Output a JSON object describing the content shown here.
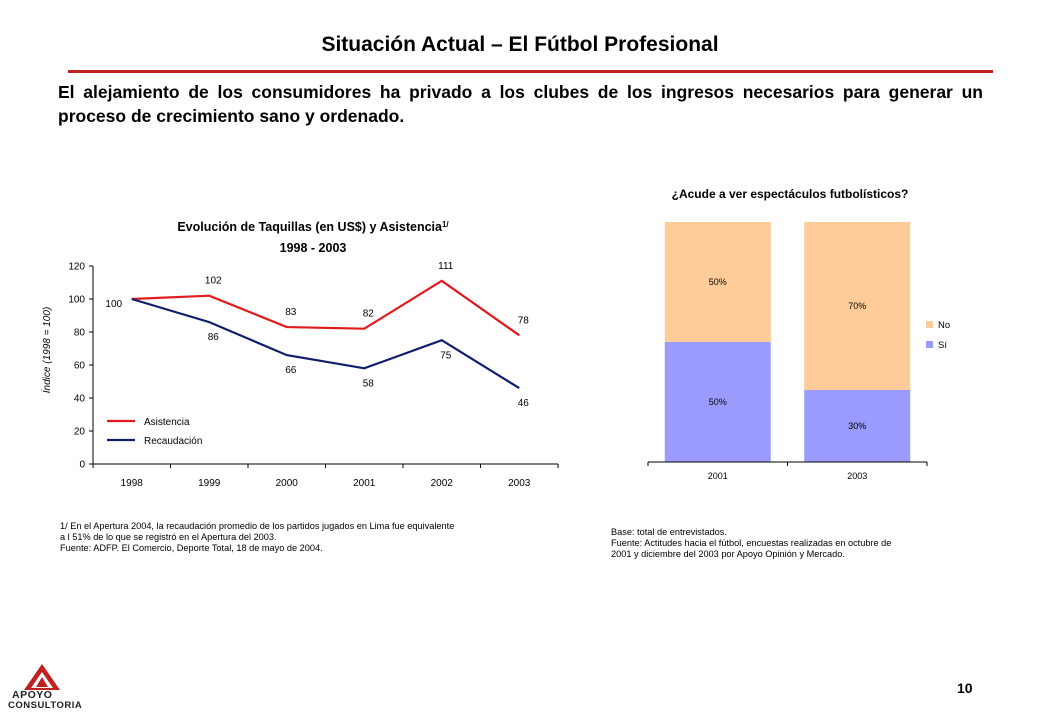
{
  "page": {
    "title": "Situación Actual – El Fútbol Profesional",
    "subtitle": "El alejamiento de los consumidores ha privado a los clubes de los ingresos necesarios para generar un proceso de crecimiento sano y ordenado.",
    "page_number": "10",
    "accent_color": "#c0201e"
  },
  "left_chart": {
    "title": "Evolución de Taquillas (en US$) y Asistencia",
    "title_sup": "1/",
    "subtitle": "1998 - 2003",
    "footnote_lines": [
      "1/ En el Apertura 2004, la recaudación promedio de los partidos jugados en Lima fue equivalente",
      "a l 51% de lo que se registró en el Apertura del 2003.",
      "Fuente: ADFP. El Comercio, Deporte Total, 18 de mayo de 2004."
    ]
  },
  "right_chart": {
    "title": "¿Acude a ver espectáculos futbolísticos?",
    "footnote_lines": [
      "Base: total de entrevistados.",
      "Fuente: Actitudes hacia el fútbol, encuestas realizadas en octubre de",
      "2001 y diciembre del 2003 por Apoyo Opinión y Mercado."
    ]
  },
  "logo": {
    "line1": "APOYO",
    "line2": "CONSULTORIA",
    "icon": "apoyo-logo-icon"
  },
  "chart_data": [
    {
      "type": "line",
      "title": "Evolución de Taquillas (en US$) y Asistencia",
      "subtitle": "1998 - 2003",
      "ylabel": "Índice (1998 = 100)",
      "xlabel": "",
      "x": [
        "1998",
        "1999",
        "2000",
        "2001",
        "2002",
        "2003"
      ],
      "ylim": [
        0,
        120
      ],
      "yticks": [
        0,
        20,
        40,
        60,
        80,
        100,
        120
      ],
      "legend_position": "bottom-left",
      "series": [
        {
          "name": "Asistencia",
          "values": [
            100,
            102,
            83,
            82,
            111,
            78
          ],
          "color": "#e3191b"
        },
        {
          "name": "Recaudación",
          "values": [
            100,
            86,
            66,
            58,
            75,
            46
          ],
          "color": "#0f1d6b"
        }
      ],
      "data_labels": {
        "first_point": "100"
      }
    },
    {
      "type": "bar",
      "stacked": true,
      "title": "¿Acude a ver espectáculos futbolísticos?",
      "categories": [
        "2001",
        "2003"
      ],
      "ylim": [
        0,
        100
      ],
      "legend_position": "right",
      "series": [
        {
          "name": "Sí",
          "values": [
            50,
            30
          ],
          "labels": [
            "50%",
            "30%"
          ],
          "color": "#9a9aff"
        },
        {
          "name": "No",
          "values": [
            50,
            70
          ],
          "labels": [
            "50%",
            "70%"
          ],
          "color": "#ffcc99"
        }
      ],
      "legend_order": [
        "No",
        "Sí"
      ]
    }
  ]
}
